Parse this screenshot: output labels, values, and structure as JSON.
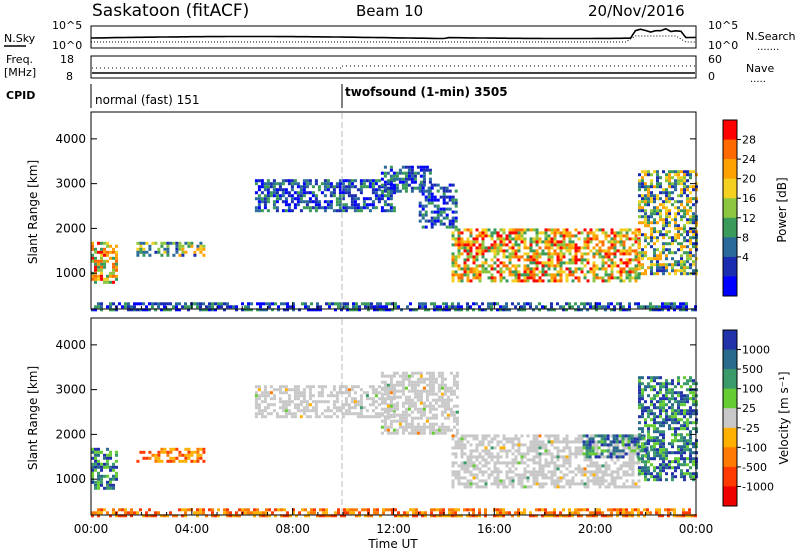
{
  "header": {
    "site": "Saskatoon (fitACF)",
    "beam": "Beam 10",
    "date": "20/Nov/2016"
  },
  "noise_panel": {
    "left_label": "N.Sky",
    "left_ticks": [
      "10^5",
      "10^0"
    ],
    "right_ticks": [
      "10^5",
      "10^0"
    ],
    "right_label": "N.Search",
    "right_legend": "......."
  },
  "freq_panel": {
    "left_label_1": "Freq.",
    "left_label_2": "[MHz]",
    "left_ticks": [
      "18",
      "8"
    ],
    "right_ticks": [
      "60",
      "0"
    ],
    "right_label": "Nave",
    "right_legend": "....."
  },
  "cpid_panel": {
    "label": "CPID",
    "modes": [
      {
        "text": "normal (fast) 151",
        "start_hour": 0
      },
      {
        "text": "twofsound (1-min) 3505",
        "start_hour": 10
      }
    ]
  },
  "x_axis": {
    "ticks": [
      "00:00",
      "04:00",
      "08:00",
      "12:00",
      "16:00",
      "20:00",
      "00:00"
    ],
    "label": "Time UT",
    "range_hours": [
      0,
      24
    ]
  },
  "power_colorbar": {
    "title": "Power [dB]",
    "ticks": [
      "28",
      "24",
      "20",
      "16",
      "12",
      "8",
      "4"
    ],
    "colors": [
      "#ff0000",
      "#ff6a00",
      "#ffa200",
      "#f4d020",
      "#8cc63f",
      "#3a9a5a",
      "#2a6a9a",
      "#1a2cb0",
      "#0000ff"
    ]
  },
  "velocity_colorbar": {
    "title": "Velocity [m s⁻¹]",
    "ticks": [
      "1000",
      "500",
      "100",
      "25",
      "-25",
      "-100",
      "-500",
      "-1000"
    ],
    "colors": [
      "#2233aa",
      "#2a6a8a",
      "#3a9a6a",
      "#66cc33",
      "#c8c8c8",
      "#ffb000",
      "#ff7a00",
      "#ff3a00",
      "#ee0000"
    ]
  },
  "chart_data": [
    {
      "type": "heatmap",
      "name": "power",
      "ylabel": "Slant Range [km]",
      "yticks": [
        "1000",
        "2000",
        "3000",
        "4000"
      ],
      "ylim": [
        200,
        4600
      ],
      "xlim_hours": [
        0,
        24
      ],
      "regions": [
        {
          "t0": 0.0,
          "t1": 1.0,
          "r0": 800,
          "r1": 1700,
          "level": "high"
        },
        {
          "t0": 1.8,
          "t1": 4.5,
          "r0": 1400,
          "r1": 1700,
          "level": "mid"
        },
        {
          "t0": 6.5,
          "t1": 12.0,
          "r0": 2400,
          "r1": 3100,
          "level": "low"
        },
        {
          "t0": 11.5,
          "t1": 13.5,
          "r0": 2800,
          "r1": 3400,
          "level": "low"
        },
        {
          "t0": 13.0,
          "t1": 14.5,
          "r0": 2000,
          "r1": 3000,
          "level": "low"
        },
        {
          "t0": 14.3,
          "t1": 21.7,
          "r0": 800,
          "r1": 2000,
          "level": "high"
        },
        {
          "t0": 21.7,
          "t1": 24.0,
          "r0": 1000,
          "r1": 3300,
          "level": "mid"
        },
        {
          "t0": 0.0,
          "t1": 24.0,
          "r0": 200,
          "r1": 350,
          "level": "low"
        }
      ]
    },
    {
      "type": "heatmap",
      "name": "velocity",
      "ylabel": "Slant Range [km]",
      "yticks": [
        "1000",
        "2000",
        "3000",
        "4000"
      ],
      "ylim": [
        200,
        4600
      ],
      "xlim_hours": [
        0,
        24
      ],
      "regions": [
        {
          "t0": 0.0,
          "t1": 1.0,
          "r0": 800,
          "r1": 1700,
          "velocity": 100
        },
        {
          "t0": 1.8,
          "t1": 4.5,
          "r0": 1400,
          "r1": 1700,
          "velocity": -100
        },
        {
          "t0": 6.5,
          "t1": 12.0,
          "r0": 2400,
          "r1": 3100,
          "velocity": 0
        },
        {
          "t0": 11.5,
          "t1": 14.5,
          "r0": 2000,
          "r1": 3400,
          "velocity": 0
        },
        {
          "t0": 14.3,
          "t1": 21.7,
          "r0": 800,
          "r1": 2000,
          "velocity": 0
        },
        {
          "t0": 19.5,
          "t1": 22.0,
          "r0": 1500,
          "r1": 2000,
          "velocity": 100
        },
        {
          "t0": 21.7,
          "t1": 24.0,
          "r0": 1000,
          "r1": 3300,
          "velocity": 100
        },
        {
          "t0": 0.0,
          "t1": 24.0,
          "r0": 200,
          "r1": 350,
          "velocity": -100
        }
      ]
    }
  ]
}
